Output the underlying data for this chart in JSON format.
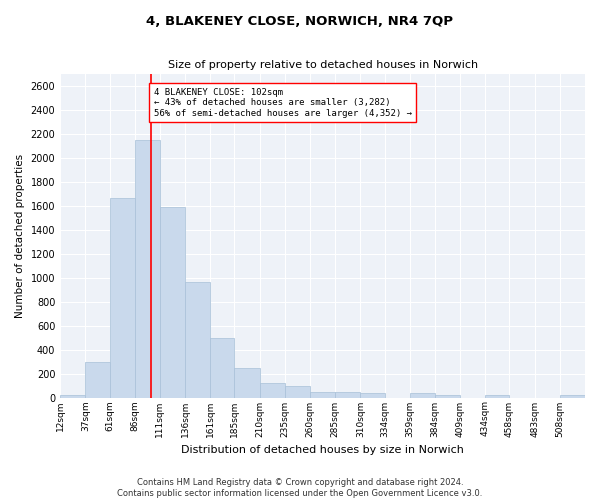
{
  "title": "4, BLAKENEY CLOSE, NORWICH, NR4 7QP",
  "subtitle": "Size of property relative to detached houses in Norwich",
  "xlabel": "Distribution of detached houses by size in Norwich",
  "ylabel": "Number of detached properties",
  "bar_color": "#c9d9ec",
  "bar_edge_color": "#a8c0d8",
  "background_color": "#eef2f8",
  "grid_color": "white",
  "bin_labels": [
    "12sqm",
    "37sqm",
    "61sqm",
    "86sqm",
    "111sqm",
    "136sqm",
    "161sqm",
    "185sqm",
    "210sqm",
    "235sqm",
    "260sqm",
    "285sqm",
    "310sqm",
    "334sqm",
    "359sqm",
    "384sqm",
    "409sqm",
    "434sqm",
    "458sqm",
    "483sqm",
    "508sqm"
  ],
  "bar_values": [
    25,
    300,
    1660,
    2150,
    1590,
    960,
    500,
    250,
    120,
    100,
    50,
    50,
    35,
    0,
    35,
    20,
    0,
    20,
    0,
    0,
    25
  ],
  "bin_edges": [
    12,
    37,
    61,
    86,
    111,
    136,
    161,
    185,
    210,
    235,
    260,
    285,
    310,
    334,
    359,
    384,
    409,
    434,
    458,
    483,
    508,
    533
  ],
  "vline_x": 102,
  "vline_color": "red",
  "annotation_text": "4 BLAKENEY CLOSE: 102sqm\n← 43% of detached houses are smaller (3,282)\n56% of semi-detached houses are larger (4,352) →",
  "annotation_box_color": "white",
  "annotation_box_edge": "red",
  "ylim": [
    0,
    2700
  ],
  "yticks": [
    0,
    200,
    400,
    600,
    800,
    1000,
    1200,
    1400,
    1600,
    1800,
    2000,
    2200,
    2400,
    2600
  ],
  "footer_line1": "Contains HM Land Registry data © Crown copyright and database right 2024.",
  "footer_line2": "Contains public sector information licensed under the Open Government Licence v3.0."
}
